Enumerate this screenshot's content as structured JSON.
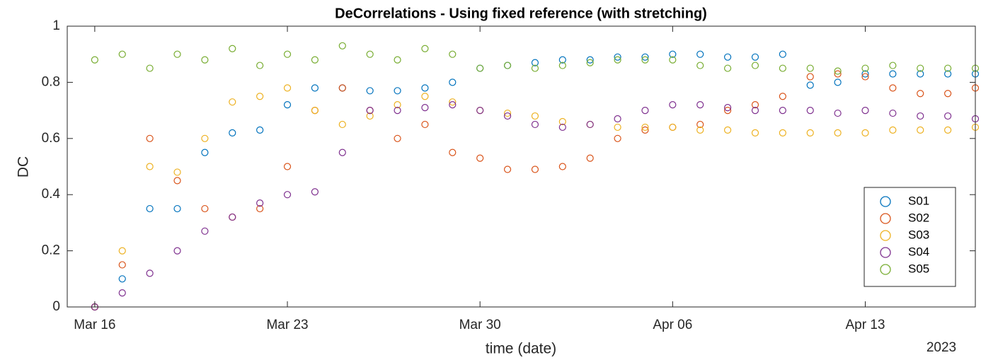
{
  "chart_data": {
    "type": "scatter",
    "title": "DeCorrelations - Using fixed reference (with stretching)",
    "xlabel": "time (date)",
    "ylabel": "DC",
    "x_year_label": "2023",
    "x": [
      "2023-03-16",
      "2023-03-17",
      "2023-03-18",
      "2023-03-19",
      "2023-03-20",
      "2023-03-21",
      "2023-03-22",
      "2023-03-23",
      "2023-03-24",
      "2023-03-25",
      "2023-03-26",
      "2023-03-27",
      "2023-03-28",
      "2023-03-29",
      "2023-03-30",
      "2023-03-31",
      "2023-04-01",
      "2023-04-02",
      "2023-04-03",
      "2023-04-04",
      "2023-04-05",
      "2023-04-06",
      "2023-04-07",
      "2023-04-08",
      "2023-04-09",
      "2023-04-10",
      "2023-04-11",
      "2023-04-12",
      "2023-04-13",
      "2023-04-14",
      "2023-04-15",
      "2023-04-16",
      "2023-04-17"
    ],
    "series": [
      {
        "name": "S01",
        "color": "#0072bd",
        "values": [
          0,
          0.1,
          0.35,
          0.35,
          0.55,
          0.62,
          0.63,
          0.72,
          0.78,
          0.78,
          0.77,
          0.77,
          0.78,
          0.8,
          0.85,
          0.86,
          0.87,
          0.88,
          0.88,
          0.89,
          0.89,
          0.9,
          0.9,
          0.89,
          0.89,
          0.9,
          0.79,
          0.8,
          0.83,
          0.83,
          0.83,
          0.83,
          0.83
        ]
      },
      {
        "name": "S02",
        "color": "#d95319",
        "values": [
          0,
          0.15,
          0.6,
          0.45,
          0.35,
          0.32,
          0.35,
          0.5,
          0.7,
          0.78,
          0.7,
          0.6,
          0.65,
          0.55,
          0.53,
          0.49,
          0.49,
          0.5,
          0.53,
          0.6,
          0.63,
          0.64,
          0.65,
          0.7,
          0.72,
          0.75,
          0.82,
          0.83,
          0.82,
          0.78,
          0.76,
          0.76,
          0.78
        ]
      },
      {
        "name": "S03",
        "color": "#edb120",
        "values": [
          0,
          0.2,
          0.5,
          0.48,
          0.6,
          0.73,
          0.75,
          0.78,
          0.7,
          0.65,
          0.68,
          0.72,
          0.75,
          0.73,
          0.7,
          0.69,
          0.68,
          0.66,
          0.65,
          0.64,
          0.64,
          0.64,
          0.63,
          0.63,
          0.62,
          0.62,
          0.62,
          0.62,
          0.62,
          0.63,
          0.63,
          0.63,
          0.64
        ]
      },
      {
        "name": "S04",
        "color": "#7e2f8e",
        "values": [
          0,
          0.05,
          0.12,
          0.2,
          0.27,
          0.32,
          0.37,
          0.4,
          0.41,
          0.55,
          0.7,
          0.7,
          0.71,
          0.72,
          0.7,
          0.68,
          0.65,
          0.64,
          0.65,
          0.67,
          0.7,
          0.72,
          0.72,
          0.71,
          0.7,
          0.7,
          0.7,
          0.69,
          0.7,
          0.69,
          0.68,
          0.68,
          0.67
        ]
      },
      {
        "name": "S05",
        "color": "#77ac30",
        "values": [
          0.88,
          0.9,
          0.85,
          0.9,
          0.88,
          0.92,
          0.86,
          0.9,
          0.88,
          0.93,
          0.9,
          0.88,
          0.92,
          0.9,
          0.85,
          0.86,
          0.85,
          0.86,
          0.87,
          0.88,
          0.88,
          0.88,
          0.86,
          0.85,
          0.86,
          0.85,
          0.85,
          0.84,
          0.85,
          0.86,
          0.85,
          0.85,
          0.85
        ]
      }
    ],
    "xlim": [
      "2023-03-15",
      "2023-04-17"
    ],
    "xticks": [
      {
        "value": "2023-03-16",
        "label": "Mar 16"
      },
      {
        "value": "2023-03-23",
        "label": "Mar 23"
      },
      {
        "value": "2023-03-30",
        "label": "Mar 30"
      },
      {
        "value": "2023-04-06",
        "label": "Apr 06"
      },
      {
        "value": "2023-04-13",
        "label": "Apr 13"
      }
    ],
    "ylim": [
      0,
      1
    ],
    "yticks": [
      0,
      0.2,
      0.4,
      0.6,
      0.8,
      1
    ],
    "legend": "lower right",
    "grid": false
  }
}
